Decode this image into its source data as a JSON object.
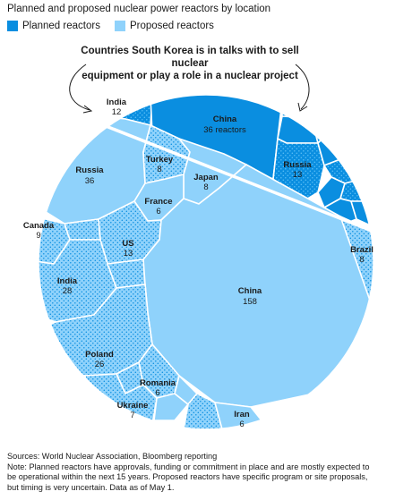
{
  "title": "Planned and proposed nuclear power reactors by location",
  "legend": {
    "planned": {
      "label": "Planned reactors",
      "color": "#0a8ee0"
    },
    "proposed": {
      "label": "Proposed reactors",
      "color": "#8fd2fb"
    }
  },
  "annotation": {
    "line1": "Countries South Korea is in talks with to sell nuclear",
    "line2": "equipment or play a role in a nuclear project"
  },
  "chart_data": {
    "type": "voronoi-treemap",
    "unit": "reactors",
    "series": [
      {
        "name": "Planned reactors",
        "points": [
          {
            "country": "China",
            "value": 36,
            "value_label": "36 reactors"
          },
          {
            "country": "Russia",
            "value": 13,
            "value_label": "13"
          },
          {
            "country": "India",
            "value": 12,
            "value_label": "12"
          }
        ]
      },
      {
        "name": "Proposed reactors",
        "points": [
          {
            "country": "China",
            "value": 158,
            "value_label": "158"
          },
          {
            "country": "Russia",
            "value": 36,
            "value_label": "36"
          },
          {
            "country": "India",
            "value": 28,
            "value_label": "28"
          },
          {
            "country": "Poland",
            "value": 26,
            "value_label": "26"
          },
          {
            "country": "US",
            "value": 13,
            "value_label": "13"
          },
          {
            "country": "Canada",
            "value": 9,
            "value_label": "9"
          },
          {
            "country": "Turkey",
            "value": 8,
            "value_label": "8"
          },
          {
            "country": "Japan",
            "value": 8,
            "value_label": "8"
          },
          {
            "country": "Brazil",
            "value": 8,
            "value_label": "8"
          },
          {
            "country": "France",
            "value": 6,
            "value_label": "6"
          },
          {
            "country": "Romania",
            "value": 6,
            "value_label": "6"
          },
          {
            "country": "Iran",
            "value": 6,
            "value_label": "6"
          },
          {
            "country": "Ukraine",
            "value": 7,
            "value_label": "7"
          }
        ]
      }
    ]
  },
  "footer": {
    "line1": "Sources: World Nuclear Association, Bloomberg reporting",
    "line2": "Note: Planned reactors have approvals, funding or commitment in place and are mostly expected to",
    "line3": "be operational within the next 15 years. Proposed reactors have specific program or site proposals,",
    "line4": "but timing is very uncertain. Data as of May 1."
  }
}
